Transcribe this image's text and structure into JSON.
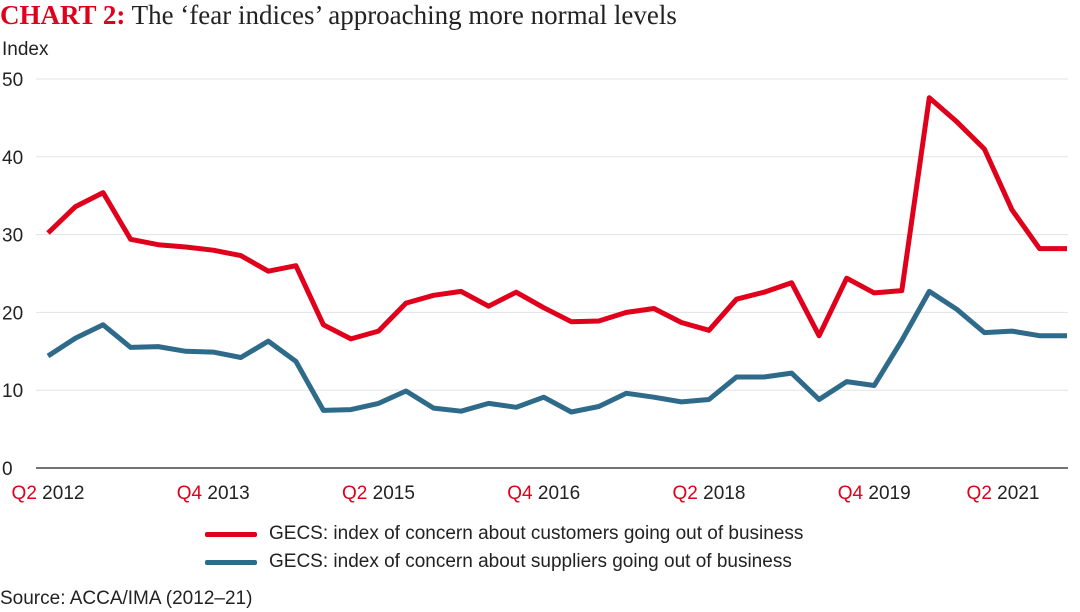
{
  "title": {
    "prefix": "CHART 2:",
    "text": " The ‘fear indices’ approaching more normal levels"
  },
  "source": "Source: ACCA/IMA (2012–21)",
  "colors": {
    "customers": "#e0001b",
    "suppliers": "#2e6a8a",
    "grid": "#e3e3e3",
    "axis": "#222222"
  },
  "chart_data": {
    "type": "line",
    "title": "The ‘fear indices’ approaching more normal levels",
    "xlabel": "",
    "ylabel": "Index",
    "ylim": [
      0,
      50
    ],
    "yticks": [
      0,
      10,
      20,
      30,
      40,
      50
    ],
    "grid": true,
    "legend_position": "bottom",
    "x": [
      "Q2 2012",
      "Q3 2012",
      "Q4 2012",
      "Q1 2013",
      "Q2 2013",
      "Q3 2013",
      "Q4 2013",
      "Q1 2014",
      "Q2 2014",
      "Q3 2014",
      "Q4 2014",
      "Q1 2015",
      "Q2 2015",
      "Q3 2015",
      "Q4 2015",
      "Q1 2016",
      "Q2 2016",
      "Q3 2016",
      "Q4 2016",
      "Q1 2017",
      "Q2 2017",
      "Q3 2017",
      "Q4 2017",
      "Q1 2018",
      "Q2 2018",
      "Q3 2018",
      "Q4 2018",
      "Q1 2019",
      "Q2 2019",
      "Q3 2019",
      "Q4 2019",
      "Q1 2020",
      "Q2 2020",
      "Q3 2020",
      "Q4 2020",
      "Q1 2021",
      "Q2 2021",
      "Q3 2021"
    ],
    "x_tick_labels": [
      {
        "index": 0,
        "quarter": "Q2",
        "year": "2012"
      },
      {
        "index": 6,
        "quarter": "Q4",
        "year": "2013"
      },
      {
        "index": 12,
        "quarter": "Q2",
        "year": "2015"
      },
      {
        "index": 18,
        "quarter": "Q4",
        "year": "2016"
      },
      {
        "index": 24,
        "quarter": "Q2",
        "year": "2018"
      },
      {
        "index": 30,
        "quarter": "Q4",
        "year": "2019"
      },
      {
        "index": 36,
        "quarter": "Q2",
        "year": "2021"
      }
    ],
    "series": [
      {
        "name": "GECS: index of concern about customers going out of business",
        "color": "#e0001b",
        "values": [
          30.2,
          33.6,
          35.4,
          29.4,
          28.7,
          28.4,
          28.0,
          27.3,
          25.3,
          26.0,
          18.4,
          16.6,
          17.6,
          21.2,
          22.2,
          22.7,
          20.8,
          22.6,
          20.6,
          18.8,
          18.9,
          20.0,
          20.5,
          18.7,
          17.7,
          21.7,
          22.6,
          23.8,
          17.0,
          24.4,
          22.5,
          22.8,
          47.6,
          44.5,
          41.0,
          33.2,
          28.2,
          28.2
        ]
      },
      {
        "name": "GECS: index of concern about suppliers going out of business",
        "color": "#2e6a8a",
        "values": [
          14.4,
          16.7,
          18.4,
          15.5,
          15.6,
          15.0,
          14.9,
          14.2,
          16.3,
          13.7,
          7.4,
          7.5,
          8.3,
          9.9,
          7.7,
          7.3,
          8.3,
          7.8,
          9.1,
          7.2,
          7.9,
          9.6,
          9.1,
          8.5,
          8.8,
          11.7,
          11.7,
          12.2,
          8.8,
          11.1,
          10.6,
          16.4,
          22.7,
          20.4,
          17.4,
          17.6,
          17.0,
          17.0
        ]
      }
    ]
  }
}
